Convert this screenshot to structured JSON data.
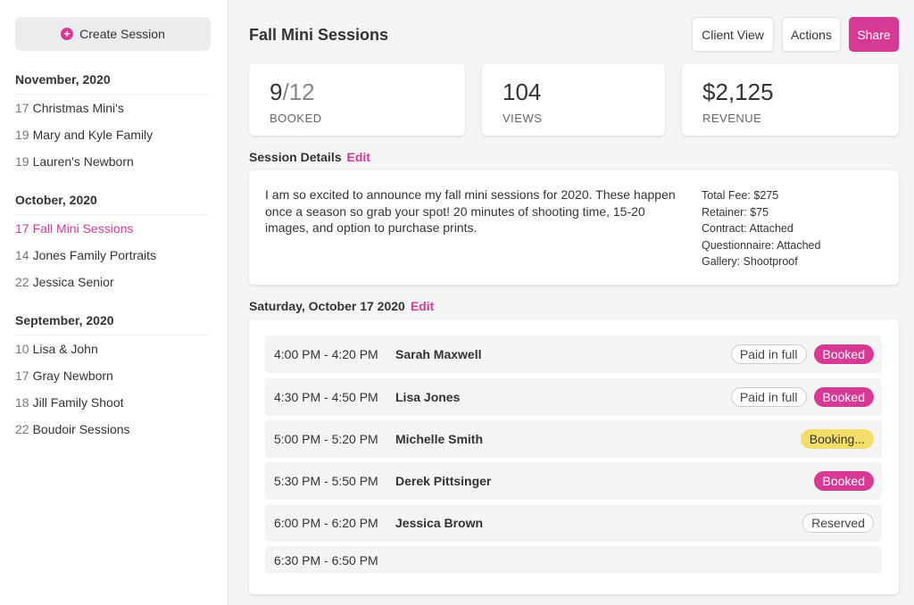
{
  "sidebar": {
    "create_button": "Create Session",
    "groups": [
      {
        "title": "November, 2020",
        "items": [
          {
            "day": "17",
            "name": "Christmas Mini's"
          },
          {
            "day": "19",
            "name": "Mary and Kyle Family"
          },
          {
            "day": "19",
            "name": "Lauren's Newborn"
          }
        ]
      },
      {
        "title": "October, 2020",
        "items": [
          {
            "day": "17",
            "name": "Fall Mini Sessions"
          },
          {
            "day": "14",
            "name": "Jones Family Portraits"
          },
          {
            "day": "22",
            "name": "Jessica Senior"
          }
        ]
      },
      {
        "title": "September, 2020",
        "items": [
          {
            "day": "10",
            "name": "Lisa & John"
          },
          {
            "day": "17",
            "name": "Gray Newborn"
          },
          {
            "day": "18",
            "name": "Jill Family Shoot"
          },
          {
            "day": "22",
            "name": "Boudoir Sessions"
          }
        ]
      }
    ]
  },
  "header": {
    "title": "Fall Mini Sessions",
    "buttons": [
      "Client View",
      "Actions",
      "Share"
    ]
  },
  "stats": [
    {
      "value": "9",
      "total": "/12",
      "label": "BOOKED"
    },
    {
      "value": "104",
      "label": "VIEWS"
    },
    {
      "value": "$2,125",
      "label": "REVENUE"
    }
  ],
  "details": {
    "heading": "Session Details",
    "edit": "Edit",
    "description": "I am so excited to announce my fall mini sessions for 2020. These happen once a season so grab your spot! 20 minutes of shooting time, 15-20 images, and option to purchase prints.",
    "facts": [
      "Total Fee: $275",
      "Retainer: $75",
      "Contract: Attached",
      "Questionnaire: Attached",
      "Gallery: Shootproof"
    ]
  },
  "schedule": {
    "heading": "Saturday, October 17 2020",
    "edit": "Edit",
    "slots": [
      {
        "time": "4:00 PM - 4:20 PM",
        "name": "Sarah Maxwell",
        "badges": [
          "Paid in full",
          "Booked"
        ]
      },
      {
        "time": "4:30 PM - 4:50 PM",
        "name": "Lisa Jones",
        "badges": [
          "Paid in full",
          "Booked"
        ]
      },
      {
        "time": "5:00 PM - 5:20 PM",
        "name": "Michelle Smith",
        "badges": [
          "Booking..."
        ]
      },
      {
        "time": "5:30 PM - 5:50 PM",
        "name": "Derek Pittsinger",
        "badges": [
          "Booked"
        ]
      },
      {
        "time": "6:00 PM - 6:20 PM",
        "name": "Jessica Brown",
        "badges": [
          "Reserved"
        ]
      },
      {
        "time": "6:30 PM - 6:50 PM"
      }
    ]
  }
}
